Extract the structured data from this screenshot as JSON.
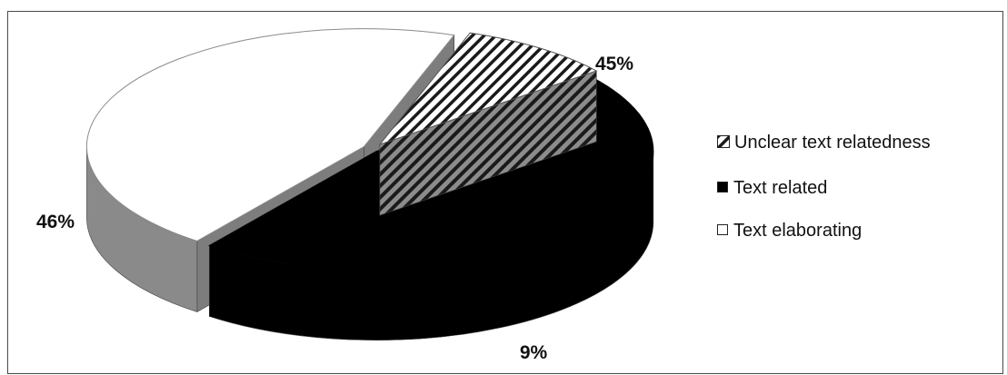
{
  "chart_data": {
    "type": "pie",
    "style": "3d-exploded",
    "slices": [
      {
        "name": "Unclear text relatedness",
        "value": 9,
        "label": "9%",
        "pattern": "diagonal-hatch",
        "color": "#ffffff"
      },
      {
        "name": "Text related",
        "value": 46,
        "label": "46%",
        "pattern": "solid",
        "color": "#000000"
      },
      {
        "name": "Text elaborating",
        "value": 45,
        "label": "45%",
        "pattern": "solid",
        "color": "#ffffff"
      }
    ],
    "legend_position": "right"
  }
}
